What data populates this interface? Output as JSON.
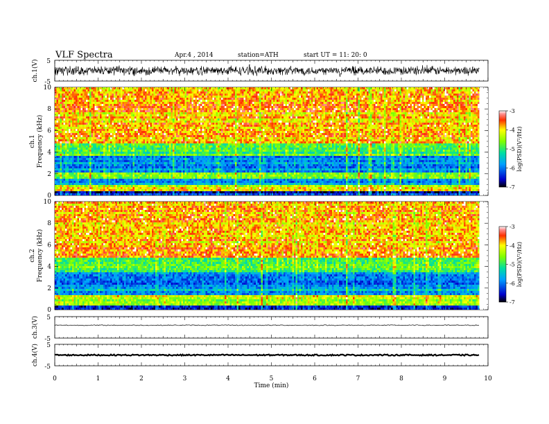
{
  "header": {
    "title": "VLF  Spectra",
    "date": "Apr.4  , 2014",
    "station": "station=ATH",
    "start": "start  UT =   11: 20: 0"
  },
  "chart_data": [
    {
      "type": "line",
      "name": "ch1-waveform",
      "ylabel": "ch.1(V)",
      "ylim": [
        -5,
        5
      ],
      "yticks": [
        "5",
        "-5"
      ],
      "xlim": [
        0,
        10
      ],
      "trace_end_min": 9.8,
      "amplitude_v": 2.2,
      "color": "#000000"
    },
    {
      "type": "heatmap",
      "name": "ch1-spectrogram",
      "ylabel": "ch.1  Frequency  (kHz)",
      "ylabel_top": "ch.1",
      "ylabel_bottom": "Frequency  (kHz)",
      "yticks": [
        "0",
        "2",
        "4",
        "6",
        "8",
        "10"
      ],
      "ylim": [
        0,
        10
      ],
      "xlim": [
        0,
        10
      ],
      "data_end_min": 9.8,
      "bands": [
        {
          "from_khz": 0,
          "to_khz": 0.3,
          "level": -6.5
        },
        {
          "from_khz": 0.3,
          "to_khz": 1.0,
          "level": -4.2
        },
        {
          "from_khz": 1.0,
          "to_khz": 1.6,
          "level": -5.8
        },
        {
          "from_khz": 1.6,
          "to_khz": 2.1,
          "level": -4.6
        },
        {
          "from_khz": 2.1,
          "to_khz": 3.6,
          "level": -5.9
        },
        {
          "from_khz": 3.6,
          "to_khz": 4.9,
          "level": -4.9
        },
        {
          "from_khz": 4.9,
          "to_khz": 10,
          "level": -3.8
        }
      ],
      "colorbar": {
        "label": "log(PSD)(V²/Hz)",
        "ticks": [
          "-3",
          "-4",
          "-5",
          "-6",
          "-7"
        ],
        "range": [
          -7,
          -3
        ]
      }
    },
    {
      "type": "heatmap",
      "name": "ch2-spectrogram",
      "ylabel": "ch.2  Frequency  (kHz)",
      "ylabel_top": "ch.2",
      "ylabel_bottom": "Frequency  (kHz)",
      "yticks": [
        "0",
        "2",
        "4",
        "6",
        "8",
        "10"
      ],
      "ylim": [
        0,
        10
      ],
      "xlim": [
        0,
        10
      ],
      "data_end_min": 9.8,
      "bands": [
        {
          "from_khz": 0,
          "to_khz": 0.4,
          "level": -6.3
        },
        {
          "from_khz": 0.4,
          "to_khz": 1.3,
          "level": -4.4
        },
        {
          "from_khz": 1.3,
          "to_khz": 2.0,
          "level": -5.7
        },
        {
          "from_khz": 2.0,
          "to_khz": 3.5,
          "level": -6.0
        },
        {
          "from_khz": 3.5,
          "to_khz": 4.8,
          "level": -4.9
        },
        {
          "from_khz": 4.8,
          "to_khz": 10,
          "level": -3.8
        }
      ],
      "colorbar": {
        "label": "log(PSD)(V²/Hz)",
        "ticks": [
          "-3",
          "-4",
          "-5",
          "-6",
          "-7"
        ],
        "range": [
          -7,
          -3
        ]
      }
    },
    {
      "type": "line",
      "name": "ch3-waveform",
      "ylabel": "ch.3(V)",
      "ylim": [
        -5,
        5
      ],
      "yticks": [
        "5",
        "-5"
      ],
      "xlim": [
        0,
        10
      ],
      "trace_end_min": 9.8,
      "offset_v": 1.0,
      "amplitude_v": 0.2,
      "color": "#000000"
    },
    {
      "type": "line",
      "name": "ch4-waveform",
      "ylabel": "ch.4(V)",
      "ylim": [
        -5,
        5
      ],
      "yticks": [
        "5",
        "-5"
      ],
      "xlim": [
        0,
        10
      ],
      "trace_end_min": 9.8,
      "offset_v": 0.0,
      "amplitude_v": 0.3,
      "color": "#000000"
    }
  ],
  "xaxis": {
    "label": "Time  (min)",
    "ticks": [
      "0",
      "1",
      "2",
      "3",
      "4",
      "5",
      "6",
      "7",
      "8",
      "9",
      "10"
    ],
    "range": [
      0,
      10
    ]
  }
}
